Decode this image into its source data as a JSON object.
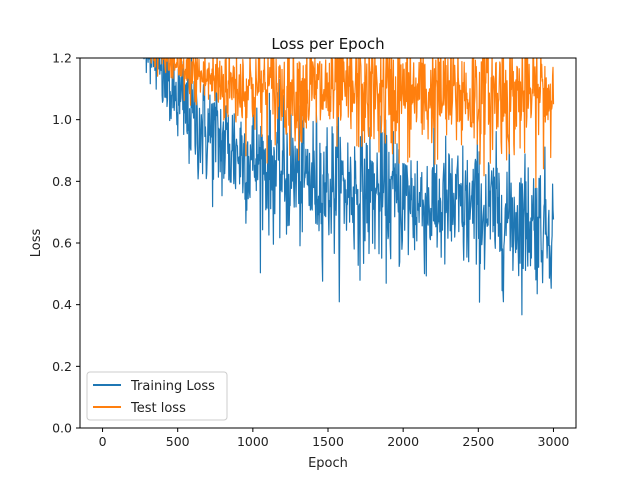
{
  "chart_data": {
    "type": "line",
    "title": "Loss per Epoch",
    "xlabel": "Epoch",
    "ylabel": "Loss",
    "xlim": [
      -150,
      3150
    ],
    "ylim": [
      0.0,
      1.2
    ],
    "xticks": [
      0,
      500,
      1000,
      1500,
      2000,
      2500,
      3000
    ],
    "yticks": [
      0.0,
      0.2,
      0.4,
      0.6,
      0.8,
      1.0,
      1.2
    ],
    "xtick_labels": [
      "0",
      "500",
      "1000",
      "1500",
      "2000",
      "2500",
      "3000"
    ],
    "ytick_labels": [
      "0.0",
      "0.2",
      "0.4",
      "0.6",
      "0.8",
      "1.0",
      "1.2"
    ],
    "grid": false,
    "legend_position": "bottom-left",
    "series": [
      {
        "name": "Training Loss",
        "color": "#1f77b4",
        "x": [
          0,
          350,
          400,
          500,
          600,
          700,
          800,
          1000,
          1200,
          1500,
          1800,
          2000,
          2200,
          2500,
          2800,
          3000
        ],
        "trend": [
          1.6,
          1.2,
          1.14,
          1.06,
          1.0,
          0.96,
          0.92,
          0.87,
          0.83,
          0.79,
          0.76,
          0.74,
          0.72,
          0.7,
          0.68,
          0.66
        ],
        "noise": [
          0.04,
          0.06,
          0.07,
          0.09,
          0.09,
          0.1,
          0.1,
          0.1,
          0.11,
          0.11,
          0.11,
          0.11,
          0.11,
          0.11,
          0.11,
          0.1
        ]
      },
      {
        "name": "Test loss",
        "color": "#ff7f0e",
        "x": [
          0,
          500,
          800,
          1000,
          1500,
          2000,
          2500,
          3000
        ],
        "trend": [
          1.4,
          1.16,
          1.12,
          1.1,
          1.09,
          1.08,
          1.08,
          1.08
        ],
        "noise": [
          0.03,
          0.04,
          0.07,
          0.08,
          0.09,
          0.1,
          0.1,
          0.1
        ]
      }
    ]
  }
}
